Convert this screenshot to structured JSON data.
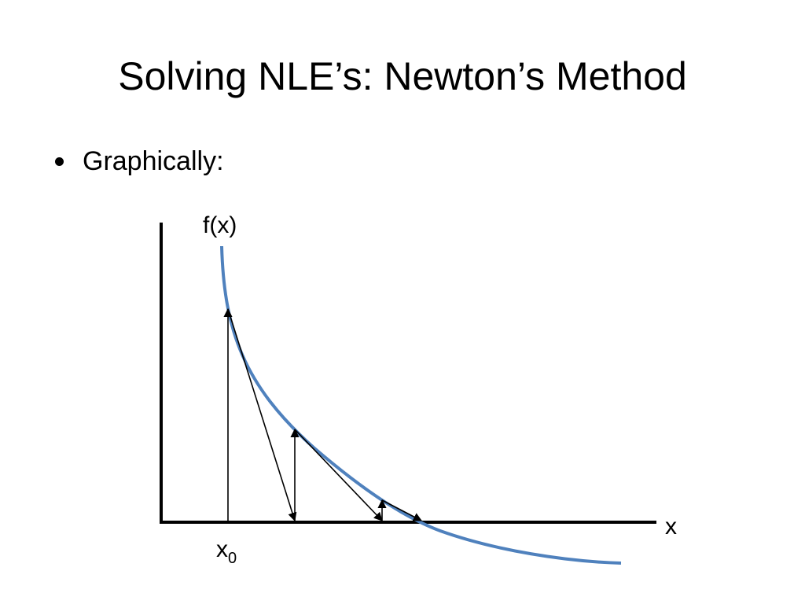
{
  "slide": {
    "title": "Solving NLE’s: Newton’s Method",
    "bullets": [
      {
        "text": "Graphically:"
      }
    ]
  },
  "diagram": {
    "y_axis_label": "f(x)",
    "x_axis_label": "x",
    "x0_label": "x",
    "x0_subscript": "0",
    "curve_color": "#4f81bd",
    "line_color": "#000000"
  }
}
